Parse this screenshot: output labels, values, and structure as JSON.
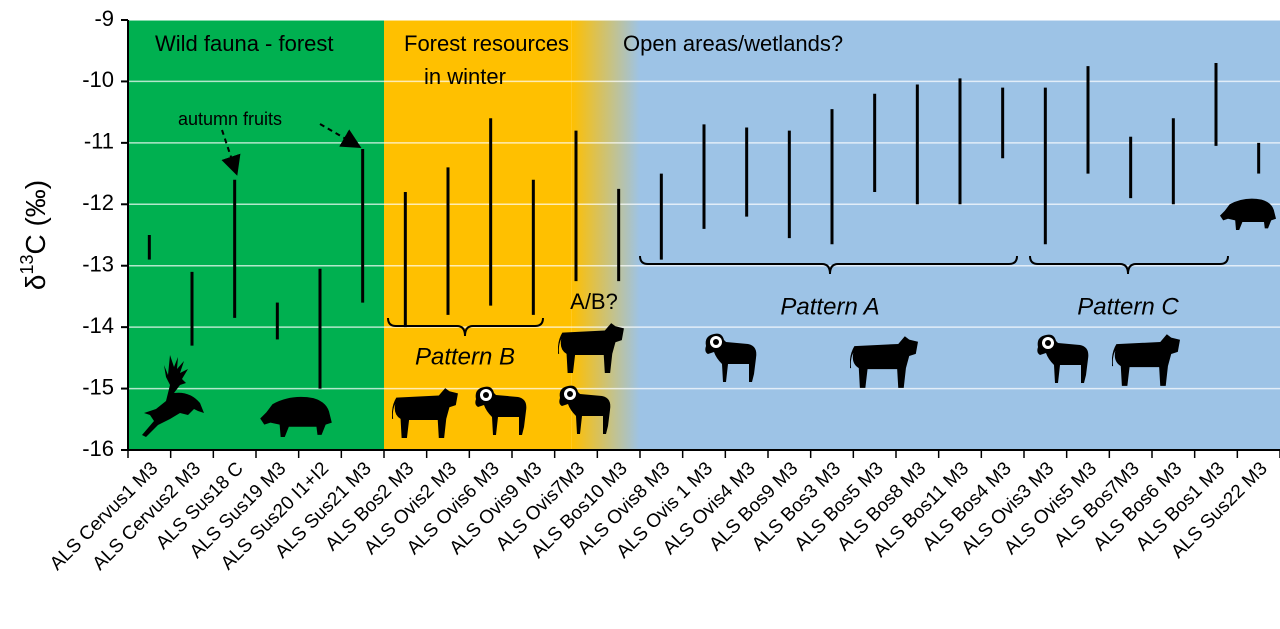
{
  "chart_data": {
    "type": "range",
    "y_label": {
      "prefix": "δ",
      "sup": "13",
      "suffix": "C (‰)"
    },
    "categories": [
      "ALS Cervus1 M3",
      "ALS Cervus2 M3",
      "ALS Sus18 C",
      "ALS Sus19 M3",
      "ALS Sus20 I1+I2",
      "ALS Sus21 M3",
      "ALS Bos2 M3",
      "ALS Ovis2 M3",
      "ALS Ovis6 M3",
      "ALS Ovis9 M3",
      "ALS Ovis7M3",
      "ALS Bos10 M3",
      "ALS Ovis8 M3",
      "ALS Ovis 1 M3",
      "ALS Ovis4 M3",
      "ALS Bos9 M3",
      "ALS Bos3 M3",
      "ALS Bos5 M3",
      "ALS Bos8 M3",
      "ALS Bos11 M3",
      "ALS Bos4 M3",
      "ALS Ovis3 M3",
      "ALS Ovis5 M3",
      "ALS Bos7M3",
      "ALS Bos6 M3",
      "ALS Bos1 M3",
      "ALS Sus22 M3"
    ],
    "low": [
      -12.9,
      -14.3,
      -13.85,
      -14.2,
      -15.0,
      -13.6,
      -14.0,
      -13.8,
      -13.65,
      -13.8,
      -13.25,
      -13.25,
      -12.9,
      -12.4,
      -12.2,
      -12.55,
      -12.65,
      -11.8,
      -12.0,
      -12.0,
      -11.25,
      -12.65,
      -11.5,
      -11.9,
      -12.0,
      -11.05,
      -11.5
    ],
    "high": [
      -12.5,
      -13.1,
      -11.6,
      -13.6,
      -13.05,
      -11.1,
      -11.8,
      -11.4,
      -10.6,
      -11.6,
      -10.8,
      -11.75,
      -11.5,
      -10.7,
      -10.75,
      -10.8,
      -10.45,
      -10.2,
      -10.05,
      -9.95,
      -10.1,
      -10.1,
      -9.75,
      -10.9,
      -10.6,
      -9.7,
      -11.0
    ],
    "color": "#000000",
    "ylim": [
      -16,
      -9
    ],
    "yticks": [
      -16,
      -15,
      -14,
      -13,
      -12,
      -11,
      -10,
      -9
    ],
    "grid": true,
    "region_colors": [
      "#00b050",
      "#ffc000",
      "#9dc3e6"
    ],
    "annotations": {
      "forest": "Wild fauna - forest",
      "winter1": "Forest resources",
      "winter2": "in winter",
      "open": "Open areas/wetlands?",
      "fruits": "autumn fruits",
      "pattern_b": "Pattern B",
      "ab": "A/B?",
      "pattern_a": "Pattern A",
      "pattern_c": "Pattern C"
    }
  }
}
